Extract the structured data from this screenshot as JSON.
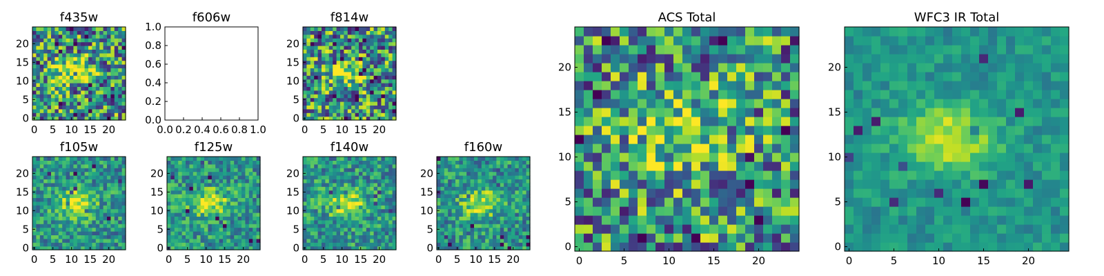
{
  "chart_data": [
    {
      "id": "f435w",
      "type": "heatmap",
      "title": "f435w",
      "grid_size": [
        25,
        25
      ],
      "colormap": "viridis",
      "xlim": [
        0,
        24
      ],
      "ylim": [
        0,
        24
      ],
      "xticks": [
        "0",
        "5",
        "10",
        "15",
        "20"
      ],
      "yticks": [
        "0",
        "5",
        "10",
        "15",
        "20"
      ],
      "source_peak": [
        10,
        13
      ],
      "noise": "high"
    },
    {
      "id": "f606w",
      "type": "empty",
      "title": "f606w",
      "xlim": [
        0,
        1
      ],
      "ylim": [
        0,
        1
      ],
      "xticks": [
        "0.0",
        "0.2",
        "0.4",
        "0.6",
        "0.8",
        "1.0"
      ],
      "yticks": [
        "0.0",
        "0.2",
        "0.4",
        "0.6",
        "0.8",
        "1.0"
      ]
    },
    {
      "id": "f814w",
      "type": "heatmap",
      "title": "f814w",
      "grid_size": [
        25,
        25
      ],
      "colormap": "viridis",
      "xlim": [
        0,
        24
      ],
      "ylim": [
        0,
        24
      ],
      "xticks": [
        "0",
        "5",
        "10",
        "15",
        "20"
      ],
      "yticks": [
        "0",
        "5",
        "10",
        "15",
        "20"
      ],
      "source_peak": [
        11,
        12
      ],
      "noise": "high"
    },
    {
      "id": "f105w",
      "type": "heatmap",
      "title": "f105w",
      "grid_size": [
        25,
        25
      ],
      "colormap": "viridis",
      "xlim": [
        0,
        24
      ],
      "ylim": [
        0,
        24
      ],
      "xticks": [
        "0",
        "5",
        "10",
        "15",
        "20"
      ],
      "yticks": [
        "0",
        "5",
        "10",
        "15",
        "20"
      ],
      "source_peak": [
        11,
        12
      ],
      "noise": "medium"
    },
    {
      "id": "f125w",
      "type": "heatmap",
      "title": "f125w",
      "grid_size": [
        25,
        25
      ],
      "colormap": "viridis",
      "xlim": [
        0,
        24
      ],
      "ylim": [
        0,
        24
      ],
      "xticks": [
        "0",
        "5",
        "10",
        "15",
        "20"
      ],
      "yticks": [
        "0",
        "5",
        "10",
        "15",
        "20"
      ],
      "source_peak": [
        11,
        12
      ],
      "noise": "medium"
    },
    {
      "id": "f140w",
      "type": "heatmap",
      "title": "f140w",
      "grid_size": [
        25,
        25
      ],
      "colormap": "viridis",
      "xlim": [
        0,
        24
      ],
      "ylim": [
        0,
        24
      ],
      "xticks": [
        "0",
        "5",
        "10",
        "15",
        "20"
      ],
      "yticks": [
        "0",
        "5",
        "10",
        "15",
        "20"
      ],
      "source_peak": [
        11,
        12
      ],
      "noise": "medium"
    },
    {
      "id": "f160w",
      "type": "heatmap",
      "title": "f160w",
      "grid_size": [
        25,
        25
      ],
      "colormap": "viridis",
      "xlim": [
        0,
        24
      ],
      "ylim": [
        0,
        24
      ],
      "xticks": [
        "0",
        "5",
        "10",
        "15",
        "20"
      ],
      "yticks": [
        "0",
        "5",
        "10",
        "15",
        "20"
      ],
      "source_peak": [
        11,
        12
      ],
      "noise": "medium"
    },
    {
      "id": "acs_total",
      "type": "heatmap",
      "title": "ACS Total",
      "grid_size": [
        25,
        25
      ],
      "colormap": "viridis",
      "xlim": [
        0,
        24
      ],
      "ylim": [
        0,
        24
      ],
      "xticks": [
        "0",
        "5",
        "10",
        "15",
        "20"
      ],
      "yticks": [
        "0",
        "5",
        "10",
        "15",
        "20"
      ],
      "source_peak": [
        11,
        13
      ],
      "noise": "high"
    },
    {
      "id": "wfc3_ir_total",
      "type": "heatmap",
      "title": "WFC3 IR Total",
      "grid_size": [
        25,
        25
      ],
      "colormap": "viridis",
      "xlim": [
        0,
        24
      ],
      "ylim": [
        0,
        24
      ],
      "xticks": [
        "0",
        "5",
        "10",
        "15",
        "20"
      ],
      "yticks": [
        "0",
        "5",
        "10",
        "15",
        "20"
      ],
      "source_peak": [
        11,
        12
      ],
      "noise": "low"
    }
  ]
}
